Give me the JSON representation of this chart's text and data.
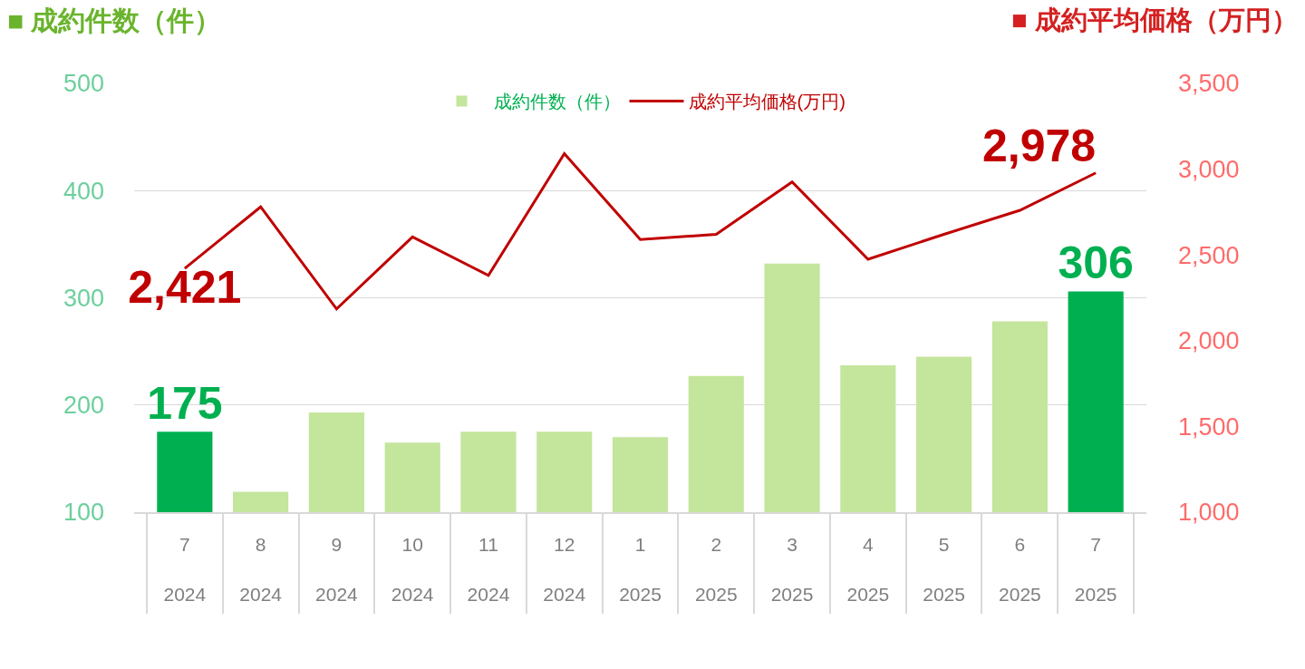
{
  "chart_data": {
    "type": "bar",
    "ylabel": "■ 成約件数（件）",
    "y2label": "■ 成約平均価格（万円）",
    "categories": [
      "7\n2024",
      "8\n2024",
      "9\n2024",
      "10\n2024",
      "11\n2024",
      "12\n2024",
      "1\n2025",
      "2\n2025",
      "3\n2025",
      "4\n2025",
      "5\n2025",
      "6\n2025",
      "7\n2025"
    ],
    "series": [
      {
        "name": "成約件数（件）",
        "color": "#c4e59c",
        "colors": [
          "#00b050",
          "#c4e59c",
          "#c4e59c",
          "#c4e59c",
          "#c4e59c",
          "#c4e59c",
          "#c4e59c",
          "#c4e59c",
          "#c4e59c",
          "#c4e59c",
          "#c4e59c",
          "#c4e59c",
          "#00b050"
        ],
        "values": [
          175,
          119,
          193,
          165,
          175,
          175,
          170,
          227,
          332,
          237,
          245,
          278,
          306
        ],
        "value_labels": [
          "175",
          null,
          null,
          null,
          null,
          null,
          null,
          null,
          null,
          null,
          null,
          null,
          "306"
        ]
      },
      {
        "type": "line",
        "name": "成約平均価格(万円)",
        "color": "#c00000",
        "axis": "y2",
        "values": [
          2421,
          2780,
          2185,
          2605,
          2380,
          3090,
          2590,
          2620,
          2925,
          2475,
          2620,
          2760,
          2978
        ],
        "value_labels": [
          "2,421",
          null,
          null,
          null,
          null,
          null,
          null,
          null,
          null,
          null,
          null,
          null,
          "2,978"
        ]
      }
    ],
    "ylim": [
      100,
      500
    ],
    "yticks": [
      100,
      200,
      300,
      400,
      500
    ],
    "y2lim": [
      1000,
      3500
    ],
    "y2ticks": [
      {
        "value": 1000,
        "label": "1,000"
      },
      {
        "value": 1500,
        "label": "1,500"
      },
      {
        "value": 2000,
        "label": "2,000"
      },
      {
        "value": 2500,
        "label": "2,500"
      },
      {
        "value": 3000,
        "label": "3,000"
      },
      {
        "value": 3500,
        "label": "3,500"
      }
    ],
    "grid": "y",
    "legend": "top",
    "marker": "none",
    "line_style": "solid"
  }
}
